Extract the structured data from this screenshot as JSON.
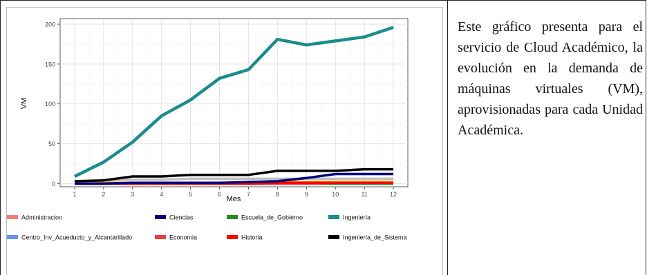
{
  "caption": "Este gráfico presenta para el servicio de Cloud Académico, la evolución en la demanda de máquinas virtuales (VM), aprovisionadas para cada Unidad Académica.",
  "colors": {
    "Administracion": "#f08070",
    "Centro_Inv_Acueducto_y_Alcantarillado": "#6495ed",
    "Ciencias": "#000080",
    "Economia": "#ee3b3b",
    "Escuela_de_Gobierno": "#228b22",
    "Historia": "#ff0000",
    "Ingeniería": "#1a8c8c",
    "Ingeniería_de_Sistemas": "#000000",
    "Orange": "#ffa500",
    "Gray": "#c0c0c0"
  },
  "chart_data": {
    "type": "line",
    "xlabel": "Mes",
    "ylabel": "VM",
    "x": [
      1,
      2,
      3,
      4,
      5,
      6,
      7,
      8,
      9,
      10,
      11,
      12
    ],
    "xticks": [
      "1",
      "2",
      "3",
      "4",
      "5",
      "6",
      "7",
      "8",
      "9",
      "10",
      "11",
      "12"
    ],
    "yticks": [
      "0",
      "50",
      "100",
      "150",
      "200"
    ],
    "ylim": [
      -4,
      207
    ],
    "xlim": [
      0.5,
      12.5
    ],
    "grid": true,
    "legend_position": "bottom",
    "series": [
      {
        "name": "Ingeniería",
        "color": "#1a8c8c",
        "values": [
          9,
          27,
          52,
          85,
          105,
          132,
          143,
          181,
          174,
          179,
          184,
          196
        ]
      },
      {
        "name": "Ingeniería_de_Sistemas",
        "color": "#000000",
        "values": [
          3,
          4,
          9,
          9,
          11,
          11,
          11,
          16,
          16,
          16,
          18,
          18
        ]
      },
      {
        "name": "Ciencias",
        "color": "#000080",
        "values": [
          0,
          0,
          1,
          1,
          1,
          1,
          2,
          3,
          7,
          12,
          12,
          12
        ]
      },
      {
        "name": "",
        "color": "#c0c0c0",
        "values": [
          2,
          4,
          5,
          5,
          6,
          6,
          6,
          6,
          6,
          6,
          6,
          6
        ]
      },
      {
        "name": "Historia",
        "color": "#ff0000",
        "values": [
          0,
          0,
          0,
          0,
          0,
          0,
          0,
          1,
          1,
          1,
          1,
          1
        ]
      },
      {
        "name": "Economia",
        "color": "#ee3b3b",
        "values": [
          0,
          0,
          0,
          0,
          0,
          0,
          0,
          0,
          0,
          1,
          1,
          1
        ]
      },
      {
        "name": "Escuela_de_Gobierno",
        "color": "#228b22",
        "values": [
          0,
          0,
          0,
          0,
          0,
          0,
          0,
          0,
          0,
          0,
          0,
          0
        ]
      },
      {
        "name": "",
        "color": "#ffa500",
        "values": [
          1,
          1,
          1,
          1,
          1,
          1,
          1,
          2,
          2,
          2,
          2,
          2
        ]
      }
    ],
    "legend": [
      {
        "name": "Administracion",
        "color": "#f08070"
      },
      {
        "name": "Ciencias",
        "color": "#000080"
      },
      {
        "name": "Escuela_de_Gobierno",
        "color": "#228b22"
      },
      {
        "name": "Ingeniería",
        "color": "#1a8c8c"
      },
      {
        "name": "Centro_Inv_Acueducto_y_Alcantarillado",
        "color": "#6495ed"
      },
      {
        "name": "Economia",
        "color": "#ee3b3b"
      },
      {
        "name": "Historia",
        "color": "#ff0000"
      },
      {
        "name": "Ingeniería_de_Sistema",
        "color": "#000000"
      }
    ]
  }
}
